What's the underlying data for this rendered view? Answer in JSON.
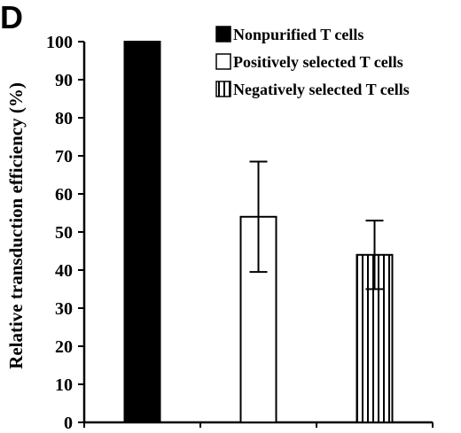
{
  "panel_label": "D",
  "chart_data": {
    "type": "bar",
    "categories": [
      "Nonpurified T cells",
      "Positively selected T cells",
      "Negatively selected T cells"
    ],
    "values": [
      100,
      54,
      44
    ],
    "error": [
      0,
      14.5,
      9
    ],
    "ylabel": "Relative transduction efficiency (%)",
    "xlabel": "",
    "ylim": [
      0,
      100
    ],
    "yticks": [
      0,
      10,
      20,
      30,
      40,
      50,
      60,
      70,
      80,
      90,
      100
    ],
    "legend": {
      "placement": "top-right",
      "entries": [
        {
          "label": "Nonpurified T cells",
          "fill": "solid-black"
        },
        {
          "label": "Positively selected T cells",
          "fill": "white"
        },
        {
          "label": "Negatively selected T cells",
          "fill": "vertical-stripes"
        }
      ]
    },
    "grid": false
  }
}
